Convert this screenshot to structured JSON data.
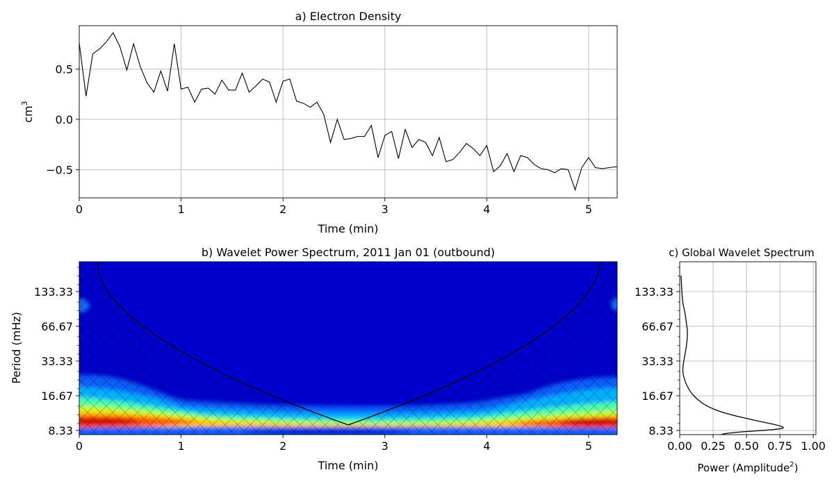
{
  "chart_data": [
    {
      "type": "line",
      "title": "a) Electron Density",
      "xlabel": "Time (min)",
      "ylabel_base": "cm",
      "ylabel_sup": "3",
      "xlim": [
        0,
        5.28
      ],
      "ylim": [
        -0.78,
        0.93
      ],
      "xticks": [
        0,
        1,
        2,
        3,
        4,
        5
      ],
      "yticks": [
        0.5,
        0.0,
        -0.5
      ],
      "ytick_labels": [
        "0.5",
        "0.0",
        "−0.5"
      ],
      "grid": true,
      "series": [
        {
          "color": "#000000",
          "x": [
            0.0,
            0.067,
            0.133,
            0.2,
            0.267,
            0.333,
            0.4,
            0.467,
            0.533,
            0.6,
            0.667,
            0.733,
            0.8,
            0.867,
            0.933,
            1.0,
            1.067,
            1.133,
            1.2,
            1.267,
            1.333,
            1.4,
            1.467,
            1.533,
            1.6,
            1.667,
            1.733,
            1.8,
            1.867,
            1.933,
            2.0,
            2.067,
            2.133,
            2.2,
            2.267,
            2.333,
            2.4,
            2.467,
            2.533,
            2.6,
            2.667,
            2.733,
            2.8,
            2.867,
            2.933,
            3.0,
            3.067,
            3.133,
            3.2,
            3.267,
            3.333,
            3.4,
            3.467,
            3.533,
            3.6,
            3.667,
            3.733,
            3.8,
            3.867,
            3.933,
            4.0,
            4.067,
            4.133,
            4.2,
            4.267,
            4.333,
            4.4,
            4.467,
            4.533,
            4.6,
            4.667,
            4.733,
            4.8,
            4.867,
            4.933,
            5.0,
            5.067,
            5.133,
            5.2,
            5.28
          ],
          "y": [
            0.76,
            0.23,
            0.65,
            0.7,
            0.77,
            0.86,
            0.72,
            0.49,
            0.75,
            0.52,
            0.36,
            0.27,
            0.48,
            0.28,
            0.75,
            0.3,
            0.32,
            0.17,
            0.3,
            0.31,
            0.25,
            0.39,
            0.29,
            0.29,
            0.46,
            0.27,
            0.33,
            0.4,
            0.37,
            0.17,
            0.38,
            0.4,
            0.18,
            0.16,
            0.12,
            0.17,
            0.05,
            -0.23,
            0.0,
            -0.2,
            -0.19,
            -0.17,
            -0.17,
            -0.06,
            -0.38,
            -0.16,
            -0.12,
            -0.39,
            -0.1,
            -0.28,
            -0.2,
            -0.23,
            -0.36,
            -0.18,
            -0.42,
            -0.4,
            -0.33,
            -0.24,
            -0.29,
            -0.36,
            -0.26,
            -0.52,
            -0.46,
            -0.34,
            -0.52,
            -0.36,
            -0.38,
            -0.45,
            -0.49,
            -0.5,
            -0.53,
            -0.49,
            -0.5,
            -0.7,
            -0.48,
            -0.38,
            -0.48,
            -0.49,
            -0.48,
            -0.47
          ]
        }
      ]
    },
    {
      "type": "heatmap",
      "title": "b) Wavelet Power Spectrum, 2011 Jan 01 (outbound)",
      "xlabel": "Time (min)",
      "ylabel": "Period (mHz)",
      "xlim": [
        0,
        5.28
      ],
      "xticks": [
        0,
        1,
        2,
        3,
        4,
        5
      ],
      "ytick_labels": [
        "133.33",
        "66.67",
        "33.33",
        "16.67",
        "8.33"
      ],
      "colormap": "jet",
      "cone_of_influence": true,
      "hatched_region": "outside cone of influence"
    },
    {
      "type": "line",
      "title": "c) Global Wavelet Spectrum",
      "xlabel_base": "Power (Amplitude",
      "xlabel_sup": "2",
      "xlabel_end": ")",
      "xlim": [
        0,
        1.02
      ],
      "xticks": [
        0.0,
        0.25,
        0.5,
        0.75,
        1.0
      ],
      "xtick_labels": [
        "0.00",
        "0.25",
        "0.50",
        "0.75",
        "1.00"
      ],
      "ytick_labels": [
        "133.33",
        "66.67",
        "33.33",
        "16.67",
        "8.33"
      ],
      "grid": true,
      "series": [
        {
          "color": "#000000",
          "power": [
            0.01,
            0.02,
            0.04,
            0.05,
            0.06,
            0.05,
            0.03,
            0.02,
            0.04,
            0.08,
            0.13,
            0.2,
            0.33,
            0.55,
            0.8,
            0.74,
            0.42,
            0.3,
            0.33
          ],
          "octaves_below_top": [
            0.0,
            0.3,
            0.6,
            0.9,
            1.2,
            1.6,
            2.0,
            2.3,
            2.6,
            2.9,
            3.1,
            3.3,
            3.5,
            3.7,
            3.9,
            3.97,
            4.05,
            4.11,
            4.16
          ]
        }
      ]
    }
  ]
}
